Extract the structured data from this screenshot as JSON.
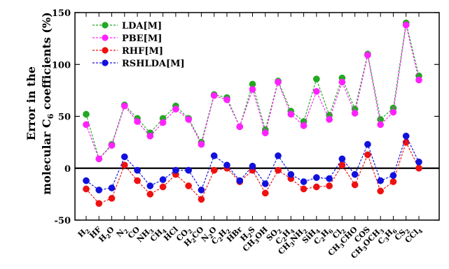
{
  "chart_data": {
    "type": "line",
    "ylabel_line1": "Error in the",
    "ylabel_line2_prefix": "molecular C",
    "ylabel_line2_sub": "6",
    "ylabel_line2_suffix": " coefficients (%)",
    "ylim": [
      -50,
      150
    ],
    "yticks": [
      -50,
      0,
      50,
      100,
      150
    ],
    "zero_line": true,
    "legend_position": "top-left",
    "categories": [
      {
        "base": "H",
        "sub": "2"
      },
      {
        "base": "HF",
        "sub": ""
      },
      {
        "base": "H",
        "sub": "2",
        "rest": "O"
      },
      {
        "base": "N",
        "sub": "2"
      },
      {
        "base": "CO",
        "sub": ""
      },
      {
        "base": "NH",
        "sub": "3"
      },
      {
        "base": "CH",
        "sub": "4"
      },
      {
        "base": "HCl",
        "sub": ""
      },
      {
        "base": "CO",
        "sub": "2"
      },
      {
        "base": "H",
        "sub": "2",
        "rest": "CO"
      },
      {
        "base": "N",
        "sub": "2",
        "rest": "O"
      },
      {
        "base": "C",
        "sub": "2",
        "rest": "H",
        "sub2": "2"
      },
      {
        "base": "HBr",
        "sub": ""
      },
      {
        "base": "H",
        "sub": "2",
        "rest": "S"
      },
      {
        "base": "CH",
        "sub": "3",
        "rest": "OH"
      },
      {
        "base": "SO",
        "sub": "2"
      },
      {
        "base": "C",
        "sub": "2",
        "rest": "H",
        "sub2": "4"
      },
      {
        "base": "CH",
        "sub": "3",
        "rest": "NH",
        "sub2": "2"
      },
      {
        "base": "SiH",
        "sub": "4"
      },
      {
        "base": "C",
        "sub": "2",
        "rest": "H",
        "sub2": "6"
      },
      {
        "base": "Cl",
        "sub": "2"
      },
      {
        "base": "CH",
        "sub": "3",
        "rest": "CHO"
      },
      {
        "base": "COS",
        "sub": ""
      },
      {
        "base": "CH",
        "sub": "3",
        "rest": "OCH",
        "sub2": "3"
      },
      {
        "base": "C",
        "sub": "3",
        "rest": "H",
        "sub2": "6"
      },
      {
        "base": "CS",
        "sub": "2"
      },
      {
        "base": "CCl",
        "sub": "4"
      }
    ],
    "series": [
      {
        "name": "LDA[M]",
        "color": "#22a822",
        "values": [
          52,
          9,
          23,
          61,
          48,
          34,
          48,
          60,
          48,
          25,
          71,
          68,
          40,
          81,
          37,
          84,
          55,
          45,
          86,
          51,
          87,
          57,
          110,
          47,
          58,
          140,
          89
        ]
      },
      {
        "name": "PBE[M]",
        "color": "#ff22ff",
        "values": [
          42,
          9,
          22,
          60,
          45,
          31,
          44,
          57,
          47,
          23,
          70,
          66,
          40,
          76,
          34,
          83,
          52,
          41,
          74,
          47,
          83,
          53,
          109,
          42,
          54,
          138,
          85
        ]
      },
      {
        "name": "RHF[M]",
        "color": "#ee1111",
        "values": [
          -20,
          -34,
          -29,
          3,
          -12,
          -25,
          -18,
          -6,
          -17,
          -30,
          -2,
          0,
          -13,
          -2,
          -24,
          -2,
          -10,
          -20,
          -18,
          -17,
          3,
          -16,
          13,
          -22,
          -13,
          25,
          0
        ]
      },
      {
        "name": "RSHLDA[M]",
        "color": "#1111dd",
        "values": [
          -12,
          -21,
          -19,
          11,
          -2,
          -17,
          -11,
          -2,
          -2,
          -21,
          12,
          3,
          -12,
          2,
          -15,
          12,
          -6,
          -13,
          -9,
          -10,
          9,
          -6,
          23,
          -12,
          -7,
          31,
          6
        ]
      }
    ]
  }
}
